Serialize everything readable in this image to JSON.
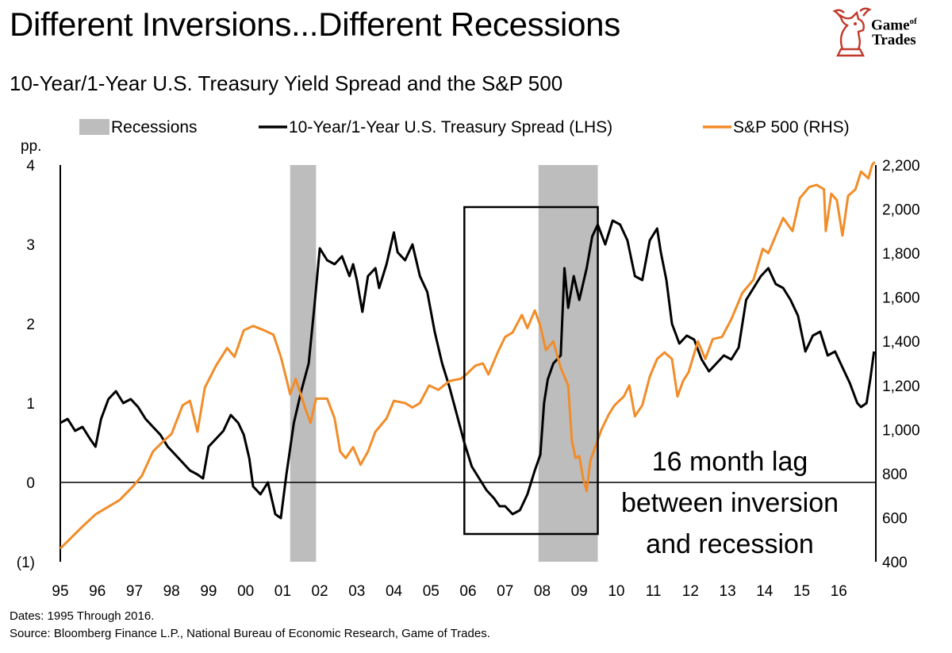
{
  "header": {
    "title": "Different Inversions...Different Recessions",
    "subtitle": "10-Year/1-Year U.S. Treasury Yield Spread and the S&P 500"
  },
  "logo": {
    "line1": "Game",
    "of": "of",
    "line2": "Trades",
    "color": "#c0392b"
  },
  "footer": {
    "dates": "Dates: 1995 Through 2016.",
    "source": "Source: Bloomberg Finance L.P., National Bureau of Economic Research, Game of Trades."
  },
  "chart_data": {
    "type": "line",
    "y_unit_label": "pp.",
    "x_ticks": [
      "95",
      "96",
      "97",
      "98",
      "99",
      "00",
      "01",
      "02",
      "03",
      "04",
      "05",
      "06",
      "07",
      "08",
      "09",
      "10",
      "11",
      "12",
      "13",
      "14",
      "15",
      "16"
    ],
    "x_range": [
      1995,
      2017
    ],
    "ylim_left": [
      -1,
      4
    ],
    "ylim_right": [
      400,
      2200
    ],
    "y_ticks_left": [
      {
        "v": 4,
        "label": "4"
      },
      {
        "v": 3,
        "label": "3"
      },
      {
        "v": 2,
        "label": "2"
      },
      {
        "v": 1,
        "label": "1"
      },
      {
        "v": 0,
        "label": "0"
      },
      {
        "v": -1,
        "label": "(1)"
      }
    ],
    "y_ticks_right": [
      {
        "v": 2200,
        "label": "2,200"
      },
      {
        "v": 2000,
        "label": "2,000"
      },
      {
        "v": 1800,
        "label": "1,800"
      },
      {
        "v": 1600,
        "label": "1,600"
      },
      {
        "v": 1400,
        "label": "1,400"
      },
      {
        "v": 1200,
        "label": "1,200"
      },
      {
        "v": 1000,
        "label": "1,000"
      },
      {
        "v": 800,
        "label": "800"
      },
      {
        "v": 600,
        "label": "600"
      },
      {
        "v": 400,
        "label": "400"
      }
    ],
    "recessions": [
      {
        "start": 2001.2,
        "end": 2001.9
      },
      {
        "start": 2007.9,
        "end": 2009.5
      }
    ],
    "highlight_box": {
      "x_start": 2005.9,
      "x_end": 2009.5,
      "y_top": 3.47,
      "y_bottom": -0.65
    },
    "annotation": [
      "16 month lag",
      "between inversion",
      "and recession"
    ],
    "legend": {
      "position": "top",
      "items": [
        {
          "label": "Recessions",
          "type": "area",
          "color": "#bdbdbd"
        },
        {
          "label": "10-Year/1-Year U.S. Treasury Spread (LHS)",
          "type": "line",
          "color": "#000000"
        },
        {
          "label": "S&P 500 (RHS)",
          "type": "line",
          "color": "#f28c28"
        }
      ]
    },
    "series": [
      {
        "name": "10-Year/1-Year U.S. Treasury Spread (LHS)",
        "axis": "left",
        "color": "#000000",
        "points": [
          [
            1995.0,
            0.75
          ],
          [
            1995.2,
            0.8
          ],
          [
            1995.4,
            0.65
          ],
          [
            1995.6,
            0.7
          ],
          [
            1995.8,
            0.55
          ],
          [
            1995.95,
            0.45
          ],
          [
            1996.1,
            0.8
          ],
          [
            1996.3,
            1.05
          ],
          [
            1996.5,
            1.15
          ],
          [
            1996.7,
            1.0
          ],
          [
            1996.9,
            1.05
          ],
          [
            1997.1,
            0.95
          ],
          [
            1997.3,
            0.8
          ],
          [
            1997.5,
            0.7
          ],
          [
            1997.7,
            0.6
          ],
          [
            1997.9,
            0.45
          ],
          [
            1998.1,
            0.35
          ],
          [
            1998.3,
            0.25
          ],
          [
            1998.5,
            0.15
          ],
          [
            1998.7,
            0.1
          ],
          [
            1998.85,
            0.05
          ],
          [
            1999.0,
            0.45
          ],
          [
            1999.2,
            0.55
          ],
          [
            1999.4,
            0.65
          ],
          [
            1999.6,
            0.85
          ],
          [
            1999.8,
            0.75
          ],
          [
            1999.95,
            0.6
          ],
          [
            2000.1,
            0.3
          ],
          [
            2000.2,
            -0.05
          ],
          [
            2000.4,
            -0.15
          ],
          [
            2000.6,
            0.0
          ],
          [
            2000.8,
            -0.4
          ],
          [
            2000.95,
            -0.45
          ],
          [
            2001.1,
            0.1
          ],
          [
            2001.3,
            0.75
          ],
          [
            2001.5,
            1.15
          ],
          [
            2001.7,
            1.5
          ],
          [
            2001.85,
            2.2
          ],
          [
            2002.0,
            2.95
          ],
          [
            2002.2,
            2.8
          ],
          [
            2002.4,
            2.75
          ],
          [
            2002.6,
            2.85
          ],
          [
            2002.8,
            2.6
          ],
          [
            2002.9,
            2.75
          ],
          [
            2003.0,
            2.55
          ],
          [
            2003.15,
            2.15
          ],
          [
            2003.3,
            2.6
          ],
          [
            2003.5,
            2.7
          ],
          [
            2003.6,
            2.45
          ],
          [
            2003.8,
            2.75
          ],
          [
            2004.0,
            3.15
          ],
          [
            2004.1,
            2.9
          ],
          [
            2004.3,
            2.8
          ],
          [
            2004.5,
            3.0
          ],
          [
            2004.7,
            2.6
          ],
          [
            2004.9,
            2.4
          ],
          [
            2005.1,
            1.9
          ],
          [
            2005.3,
            1.5
          ],
          [
            2005.5,
            1.2
          ],
          [
            2005.7,
            0.85
          ],
          [
            2005.9,
            0.5
          ],
          [
            2006.1,
            0.2
          ],
          [
            2006.3,
            0.05
          ],
          [
            2006.5,
            -0.1
          ],
          [
            2006.7,
            -0.2
          ],
          [
            2006.85,
            -0.3
          ],
          [
            2007.0,
            -0.3
          ],
          [
            2007.2,
            -0.4
          ],
          [
            2007.4,
            -0.35
          ],
          [
            2007.6,
            -0.15
          ],
          [
            2007.8,
            0.15
          ],
          [
            2007.95,
            0.35
          ],
          [
            2008.05,
            1.0
          ],
          [
            2008.15,
            1.3
          ],
          [
            2008.3,
            1.5
          ],
          [
            2008.5,
            1.6
          ],
          [
            2008.6,
            2.7
          ],
          [
            2008.7,
            2.2
          ],
          [
            2008.85,
            2.6
          ],
          [
            2009.0,
            2.3
          ],
          [
            2009.2,
            2.7
          ],
          [
            2009.35,
            3.1
          ],
          [
            2009.5,
            3.25
          ],
          [
            2009.7,
            3.0
          ],
          [
            2009.9,
            3.3
          ],
          [
            2010.1,
            3.25
          ],
          [
            2010.3,
            3.05
          ],
          [
            2010.5,
            2.6
          ],
          [
            2010.7,
            2.55
          ],
          [
            2010.9,
            3.05
          ],
          [
            2011.1,
            3.2
          ],
          [
            2011.2,
            2.9
          ],
          [
            2011.35,
            2.55
          ],
          [
            2011.5,
            2.0
          ],
          [
            2011.7,
            1.75
          ],
          [
            2011.9,
            1.85
          ],
          [
            2012.1,
            1.8
          ],
          [
            2012.3,
            1.55
          ],
          [
            2012.5,
            1.4
          ],
          [
            2012.7,
            1.5
          ],
          [
            2012.9,
            1.6
          ],
          [
            2013.1,
            1.55
          ],
          [
            2013.3,
            1.7
          ],
          [
            2013.5,
            2.3
          ],
          [
            2013.7,
            2.45
          ],
          [
            2013.9,
            2.6
          ],
          [
            2014.1,
            2.7
          ],
          [
            2014.3,
            2.5
          ],
          [
            2014.5,
            2.45
          ],
          [
            2014.7,
            2.3
          ],
          [
            2014.9,
            2.1
          ],
          [
            2015.1,
            1.65
          ],
          [
            2015.3,
            1.85
          ],
          [
            2015.5,
            1.9
          ],
          [
            2015.7,
            1.6
          ],
          [
            2015.9,
            1.65
          ],
          [
            2016.1,
            1.45
          ],
          [
            2016.3,
            1.25
          ],
          [
            2016.5,
            1.0
          ],
          [
            2016.6,
            0.95
          ],
          [
            2016.75,
            1.0
          ],
          [
            2016.85,
            1.3
          ],
          [
            2016.95,
            1.65
          ]
        ]
      },
      {
        "name": "S&P 500 (RHS)",
        "axis": "right",
        "color": "#f28c28",
        "points": [
          [
            1995.0,
            460
          ],
          [
            1995.3,
            510
          ],
          [
            1995.6,
            560
          ],
          [
            1995.95,
            615
          ],
          [
            1996.3,
            650
          ],
          [
            1996.6,
            680
          ],
          [
            1996.95,
            740
          ],
          [
            1997.2,
            790
          ],
          [
            1997.5,
            900
          ],
          [
            1997.8,
            950
          ],
          [
            1998.0,
            980
          ],
          [
            1998.3,
            1110
          ],
          [
            1998.5,
            1130
          ],
          [
            1998.7,
            990
          ],
          [
            1998.9,
            1190
          ],
          [
            1999.2,
            1290
          ],
          [
            1999.5,
            1370
          ],
          [
            1999.7,
            1330
          ],
          [
            1999.95,
            1450
          ],
          [
            2000.2,
            1470
          ],
          [
            2000.5,
            1450
          ],
          [
            2000.75,
            1430
          ],
          [
            2000.95,
            1330
          ],
          [
            2001.1,
            1230
          ],
          [
            2001.2,
            1160
          ],
          [
            2001.35,
            1230
          ],
          [
            2001.6,
            1100
          ],
          [
            2001.75,
            1030
          ],
          [
            2001.9,
            1140
          ],
          [
            2002.2,
            1140
          ],
          [
            2002.4,
            1050
          ],
          [
            2002.55,
            900
          ],
          [
            2002.7,
            870
          ],
          [
            2002.9,
            920
          ],
          [
            2003.1,
            840
          ],
          [
            2003.3,
            900
          ],
          [
            2003.5,
            990
          ],
          [
            2003.8,
            1050
          ],
          [
            2004.0,
            1130
          ],
          [
            2004.3,
            1120
          ],
          [
            2004.5,
            1100
          ],
          [
            2004.7,
            1120
          ],
          [
            2004.95,
            1200
          ],
          [
            2005.2,
            1180
          ],
          [
            2005.5,
            1220
          ],
          [
            2005.8,
            1230
          ],
          [
            2005.95,
            1250
          ],
          [
            2006.2,
            1290
          ],
          [
            2006.4,
            1300
          ],
          [
            2006.55,
            1250
          ],
          [
            2006.8,
            1350
          ],
          [
            2007.0,
            1420
          ],
          [
            2007.2,
            1440
          ],
          [
            2007.45,
            1520
          ],
          [
            2007.6,
            1460
          ],
          [
            2007.8,
            1540
          ],
          [
            2007.95,
            1470
          ],
          [
            2008.1,
            1360
          ],
          [
            2008.3,
            1400
          ],
          [
            2008.5,
            1280
          ],
          [
            2008.7,
            1200
          ],
          [
            2008.8,
            950
          ],
          [
            2008.9,
            870
          ],
          [
            2009.0,
            880
          ],
          [
            2009.1,
            780
          ],
          [
            2009.2,
            720
          ],
          [
            2009.3,
            860
          ],
          [
            2009.45,
            930
          ],
          [
            2009.6,
            1000
          ],
          [
            2009.8,
            1070
          ],
          [
            2009.95,
            1110
          ],
          [
            2010.2,
            1150
          ],
          [
            2010.35,
            1200
          ],
          [
            2010.5,
            1060
          ],
          [
            2010.7,
            1110
          ],
          [
            2010.9,
            1240
          ],
          [
            2011.1,
            1320
          ],
          [
            2011.3,
            1350
          ],
          [
            2011.5,
            1320
          ],
          [
            2011.65,
            1150
          ],
          [
            2011.8,
            1220
          ],
          [
            2011.95,
            1260
          ],
          [
            2012.2,
            1400
          ],
          [
            2012.4,
            1320
          ],
          [
            2012.6,
            1410
          ],
          [
            2012.85,
            1420
          ],
          [
            2013.1,
            1500
          ],
          [
            2013.4,
            1620
          ],
          [
            2013.7,
            1680
          ],
          [
            2013.95,
            1820
          ],
          [
            2014.1,
            1800
          ],
          [
            2014.3,
            1880
          ],
          [
            2014.5,
            1960
          ],
          [
            2014.75,
            1900
          ],
          [
            2014.95,
            2050
          ],
          [
            2015.2,
            2100
          ],
          [
            2015.4,
            2110
          ],
          [
            2015.6,
            2090
          ],
          [
            2015.65,
            1900
          ],
          [
            2015.8,
            2070
          ],
          [
            2015.95,
            2040
          ],
          [
            2016.1,
            1880
          ],
          [
            2016.25,
            2060
          ],
          [
            2016.45,
            2090
          ],
          [
            2016.6,
            2170
          ],
          [
            2016.8,
            2140
          ],
          [
            2016.9,
            2200
          ],
          [
            2016.97,
            2250
          ]
        ]
      }
    ]
  }
}
